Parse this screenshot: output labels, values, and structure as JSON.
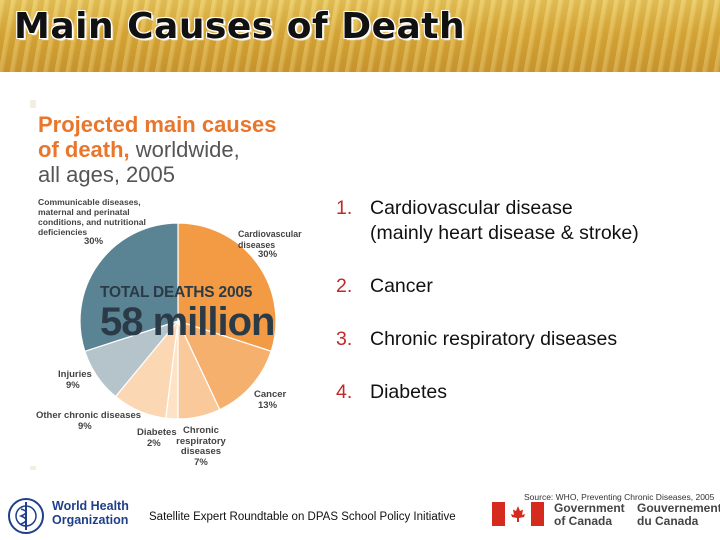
{
  "slide": {
    "title": "Main Causes of Death",
    "list": [
      {
        "num": "1.",
        "text": "Cardiovascular disease",
        "subtext": "(mainly heart disease & stroke)"
      },
      {
        "num": "2.",
        "text": "Cancer"
      },
      {
        "num": "3.",
        "text": "Chronic respiratory diseases"
      },
      {
        "num": "4.",
        "text": "Diabetes"
      }
    ],
    "source": "Source: WHO, Preventing Chronic Diseases, 2005",
    "footer": "Satellite Expert Roundtable on DPAS School Policy Initiative",
    "who": {
      "line1": "World Health",
      "line2": "Organization"
    },
    "canada": {
      "en1": "Government",
      "en2": "of Canada",
      "fr1": "Gouvernement",
      "fr2": "du Canada"
    }
  },
  "chart_data": {
    "type": "pie",
    "title_line1": "Projected main causes",
    "title_line2_bold": "of death,",
    "title_line2_rest": " worldwide,",
    "title_line3": "all ages, 2005",
    "center_label": "TOTAL DEATHS 2005",
    "center_value": "58 million",
    "slices": [
      {
        "label": "Cardiovascular diseases",
        "value": 30,
        "pct_label": "30%",
        "color": "#f39a45"
      },
      {
        "label": "Cancer",
        "value": 13,
        "pct_label": "13%",
        "color": "#f6b06e"
      },
      {
        "label": "Chronic respiratory diseases",
        "value": 7,
        "pct_label": "7%",
        "color": "#f9c99c"
      },
      {
        "label": "Diabetes",
        "value": 2,
        "pct_label": "2%",
        "color": "#fde2c6"
      },
      {
        "label": "Other chronic diseases",
        "value": 9,
        "pct_label": "9%",
        "color": "#fbd7b3"
      },
      {
        "label": "Injuries",
        "value": 9,
        "pct_label": "9%",
        "color": "#b5c3cb"
      },
      {
        "label": "Communicable diseases, maternal and perinatal conditions, and nutritional deficiencies",
        "value": 30,
        "pct_label": "30%",
        "color": "#5a8494"
      }
    ]
  }
}
